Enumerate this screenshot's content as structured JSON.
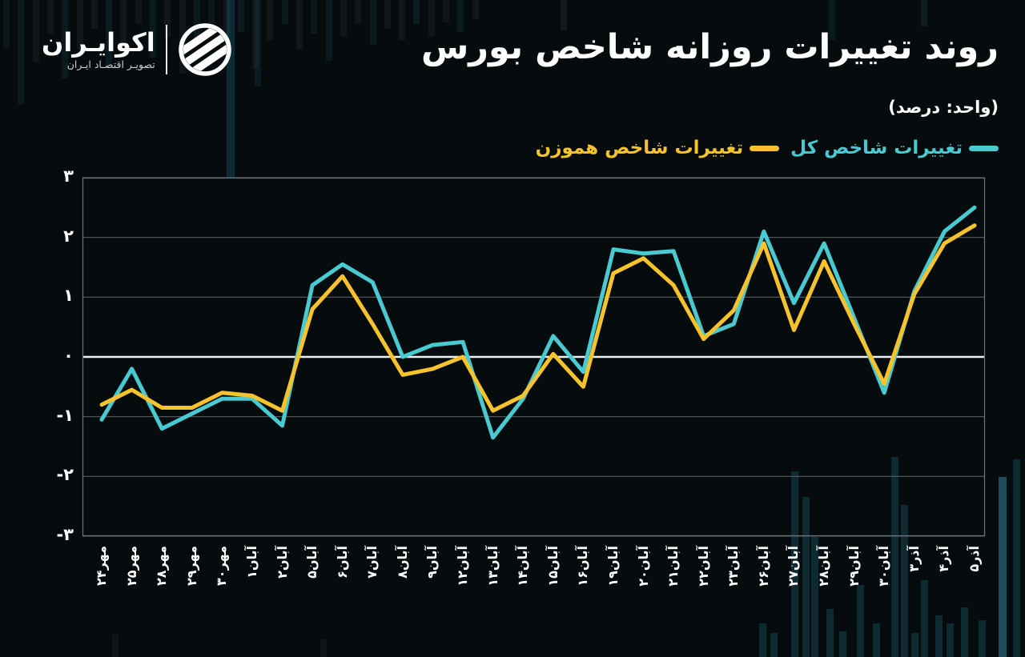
{
  "brand": {
    "name": "اکوایـران",
    "tagline": "تصویـر اقتصـاد ایـران"
  },
  "header": {
    "title": "روند تغییرات روزانه شاخص بورس",
    "unit_note": "(واحد: درصد)"
  },
  "colors": {
    "background": "#060c0e",
    "total_index_line": "#49c9d0",
    "equal_weight_line": "#f6c32c",
    "gridline": "#565c60",
    "zero_line": "#eef1f2",
    "plot_border": "#6e7477",
    "text": "#ffffff"
  },
  "legend": [
    {
      "id": "total-index",
      "label": "تغییرات شاخص کل",
      "color": "#49c9d0"
    },
    {
      "id": "equal-weight",
      "label": "تغییرات شاخص هموزن",
      "color": "#f6c32c"
    }
  ],
  "chart_data": {
    "type": "line",
    "title": "روند تغییرات روزانه شاخص بورس",
    "unit": "درصد",
    "categories": [
      "مهر۲۴",
      "مهر۲۵",
      "مهر۲۸",
      "مهر۲۹",
      "مهر۳۰",
      "آبان۱",
      "آبان۲",
      "آبان۵",
      "آبان۶",
      "آبان۷",
      "آبان۸",
      "آبان۹",
      "آبان۱۲",
      "آبان۱۳",
      "آبان۱۴",
      "آبان۱۵",
      "آبان۱۶",
      "آبان۱۹",
      "آبان۲۰",
      "آبان۲۱",
      "آبان۲۲",
      "آبان۲۳",
      "آبان۲۶",
      "آبان۲۷",
      "آبان۲۸",
      "آبان۲۹",
      "آبان۳۰",
      "آذر۳",
      "آذر۴",
      "آذر۵"
    ],
    "series": [
      {
        "name": "تغییرات شاخص کل",
        "color": "#49c9d0",
        "values": [
          -1.05,
          -0.2,
          -1.2,
          -0.95,
          -0.7,
          -0.7,
          -1.15,
          1.2,
          1.55,
          1.25,
          0.0,
          0.2,
          0.25,
          -1.35,
          -0.7,
          0.35,
          -0.25,
          1.8,
          1.73,
          1.77,
          0.35,
          0.55,
          2.1,
          0.9,
          1.9,
          0.65,
          -0.6,
          1.1,
          2.1,
          2.5
        ]
      },
      {
        "name": "تغییرات شاخص هموزن",
        "color": "#f6c32c",
        "values": [
          -0.8,
          -0.55,
          -0.85,
          -0.85,
          -0.6,
          -0.65,
          -0.9,
          0.8,
          1.35,
          0.55,
          -0.3,
          -0.2,
          0.0,
          -0.9,
          -0.65,
          0.05,
          -0.5,
          1.4,
          1.65,
          1.2,
          0.3,
          0.78,
          1.9,
          0.45,
          1.6,
          0.55,
          -0.45,
          1.05,
          1.9,
          2.2
        ]
      }
    ],
    "ylim": [
      -3,
      3
    ],
    "y_ticks": [
      {
        "label": "۳",
        "value": 3
      },
      {
        "label": "۲",
        "value": 2
      },
      {
        "label": "۱",
        "value": 1
      },
      {
        "label": "۰",
        "value": 0
      },
      {
        "label": "-۱",
        "value": -1
      },
      {
        "label": "-۲",
        "value": -2
      },
      {
        "label": "-۳",
        "value": -3
      }
    ],
    "grid": "horizontal",
    "zero_line": true,
    "legend_position": "top-right",
    "x_label_rotation": -90
  }
}
